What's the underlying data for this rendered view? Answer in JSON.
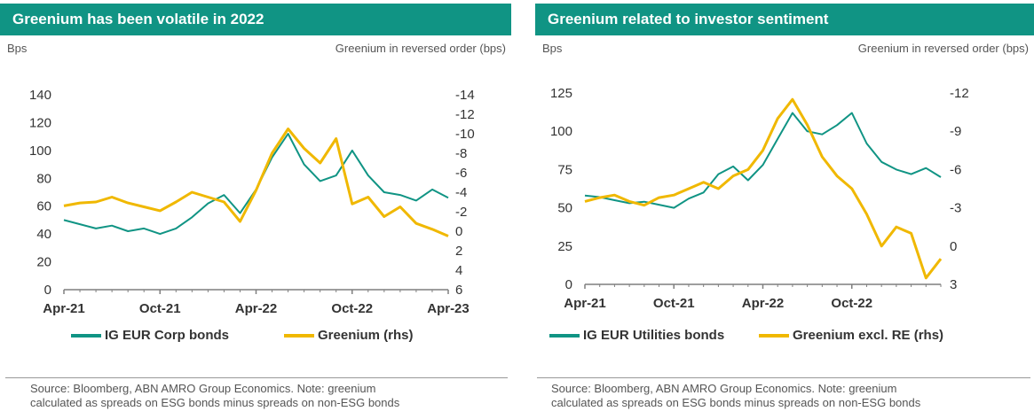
{
  "left": {
    "title": "Greenium has been volatile in 2022",
    "left_unit": "Bps",
    "right_unit": "Greenium in reversed order (bps)",
    "legend": [
      "IG EUR Corp bonds",
      "Greenium (rhs)"
    ],
    "source": "Source: Bloomberg, ABN AMRO Group Economics. Note: greenium",
    "source2": "calculated as spreads on ESG bonds minus spreads on non-ESG bonds"
  },
  "right": {
    "title": "Greenium related to investor sentiment",
    "left_unit": "Bps",
    "right_unit": "Greenium in reversed order (bps)",
    "legend": [
      "IG EUR Utilities bonds",
      "Greenium excl. RE (rhs)"
    ],
    "source": "Source: Bloomberg, ABN AMRO Group Economics. Note: greenium",
    "source2": "calculated as spreads on ESG bonds minus spreads on non-ESG bonds"
  },
  "colors": {
    "teal": "#109484",
    "gold": "#F0B800",
    "axis": "#7f7f7f"
  },
  "chart_data": [
    {
      "type": "line",
      "title": "Greenium has been volatile in 2022",
      "ylabel": "Bps",
      "y2label": "Greenium in reversed order (bps)",
      "x_ticks": [
        "Apr-21",
        "Oct-21",
        "Apr-22",
        "Oct-22",
        "Apr-23"
      ],
      "x_range": [
        "2021-04",
        "2023-04"
      ],
      "ylim": [
        0,
        140
      ],
      "y_ticks": [
        0,
        20,
        40,
        60,
        80,
        100,
        120,
        140
      ],
      "y2lim": [
        6,
        -14
      ],
      "y2_ticks": [
        6,
        4,
        2,
        0,
        -2,
        -4,
        -6,
        -8,
        -10,
        -12,
        -14
      ],
      "y2_tick_labels": [
        "6",
        "4",
        "2",
        "0",
        "-2",
        "-4",
        "-6",
        "-8",
        "-10",
        "-12",
        "-14"
      ],
      "legend_position": "bottom",
      "series": [
        {
          "name": "IG EUR Corp bonds",
          "axis": "left",
          "x": [
            "2021-04",
            "2021-05",
            "2021-06",
            "2021-07",
            "2021-08",
            "2021-09",
            "2021-10",
            "2021-11",
            "2021-12",
            "2022-01",
            "2022-02",
            "2022-03",
            "2022-04",
            "2022-05",
            "2022-06",
            "2022-07",
            "2022-08",
            "2022-09",
            "2022-10",
            "2022-11",
            "2022-12",
            "2023-01",
            "2023-02",
            "2023-03",
            "2023-04"
          ],
          "values": [
            50,
            47,
            44,
            46,
            42,
            44,
            40,
            44,
            52,
            62,
            68,
            55,
            72,
            95,
            112,
            90,
            78,
            82,
            100,
            82,
            70,
            68,
            64,
            72,
            66
          ]
        },
        {
          "name": "Greenium (rhs)",
          "axis": "right",
          "x": [
            "2021-04",
            "2021-05",
            "2021-06",
            "2021-07",
            "2021-08",
            "2021-09",
            "2021-10",
            "2021-11",
            "2021-12",
            "2022-01",
            "2022-02",
            "2022-03",
            "2022-04",
            "2022-05",
            "2022-06",
            "2022-07",
            "2022-08",
            "2022-09",
            "2022-10",
            "2022-11",
            "2022-12",
            "2023-01",
            "2023-02",
            "2023-03",
            "2023-04"
          ],
          "values": [
            -2.6,
            -2.9,
            -3.0,
            -3.5,
            -2.9,
            -2.5,
            -2.1,
            -3.0,
            -4.0,
            -3.5,
            -3.0,
            -1.0,
            -4.2,
            -8.0,
            -10.5,
            -8.5,
            -7.0,
            -9.5,
            -2.8,
            -3.5,
            -1.5,
            -2.5,
            -0.8,
            -0.2,
            0.5
          ]
        }
      ]
    },
    {
      "type": "line",
      "title": "Greenium related to investor sentiment",
      "ylabel": "Bps",
      "y2label": "Greenium in reversed order (bps)",
      "x_ticks": [
        "Apr-21",
        "Oct-21",
        "Apr-22",
        "Oct-22"
      ],
      "x_range": [
        "2021-04",
        "2023-04"
      ],
      "ylim": [
        0,
        125
      ],
      "y_ticks": [
        0,
        25,
        50,
        75,
        100,
        125
      ],
      "y2lim": [
        3,
        -12
      ],
      "y2_ticks": [
        3,
        0,
        -3,
        -6,
        -9,
        -12
      ],
      "y2_tick_labels": [
        "3",
        "0",
        "-3",
        "-6",
        "-9",
        "-12"
      ],
      "legend_position": "bottom",
      "series": [
        {
          "name": "IG EUR Utilities bonds",
          "axis": "left",
          "x": [
            "2021-04",
            "2021-05",
            "2021-06",
            "2021-07",
            "2021-08",
            "2021-09",
            "2021-10",
            "2021-11",
            "2021-12",
            "2022-01",
            "2022-02",
            "2022-03",
            "2022-04",
            "2022-05",
            "2022-06",
            "2022-07",
            "2022-08",
            "2022-09",
            "2022-10",
            "2022-11",
            "2022-12",
            "2023-01",
            "2023-02",
            "2023-03",
            "2023-04"
          ],
          "values": [
            58,
            57,
            55,
            53,
            54,
            52,
            50,
            56,
            60,
            72,
            77,
            68,
            78,
            95,
            112,
            100,
            98,
            104,
            112,
            92,
            80,
            75,
            72,
            76,
            70
          ]
        },
        {
          "name": "Greenium excl. RE (rhs)",
          "axis": "right",
          "x": [
            "2021-04",
            "2021-05",
            "2021-06",
            "2021-07",
            "2021-08",
            "2021-09",
            "2021-10",
            "2021-11",
            "2021-12",
            "2022-01",
            "2022-02",
            "2022-03",
            "2022-04",
            "2022-05",
            "2022-06",
            "2022-07",
            "2022-08",
            "2022-09",
            "2022-10",
            "2022-11",
            "2022-12",
            "2023-01",
            "2023-02",
            "2023-03",
            "2023-04"
          ],
          "values": [
            -3.5,
            -3.8,
            -4.0,
            -3.5,
            -3.2,
            -3.8,
            -4.0,
            -4.5,
            -5.0,
            -4.5,
            -5.5,
            -6.0,
            -7.5,
            -10.0,
            -11.5,
            -9.5,
            -7.0,
            -5.5,
            -4.5,
            -2.5,
            0.0,
            -1.5,
            -1.0,
            2.5,
            1.0
          ]
        }
      ]
    }
  ]
}
